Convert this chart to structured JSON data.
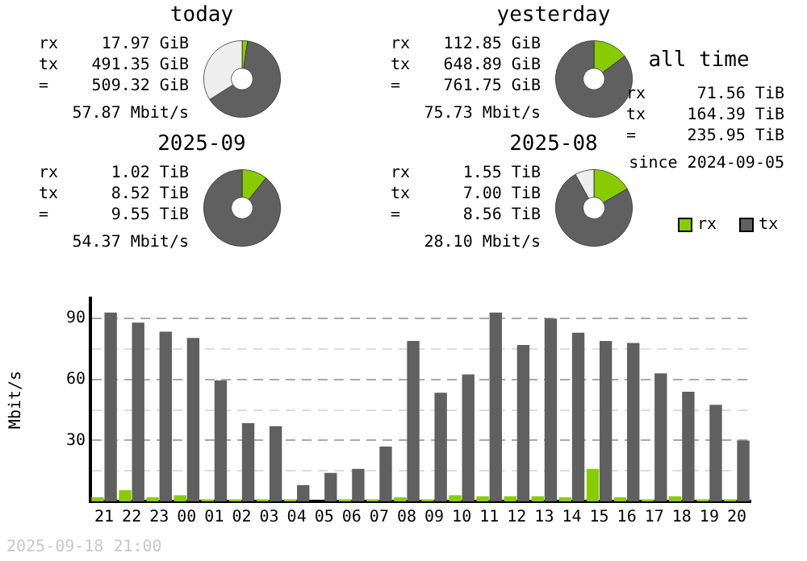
{
  "chart_data": [
    {
      "type": "donut",
      "title": "today",
      "categories": [
        null,
        null,
        null
      ],
      "values": [
        2.3,
        63.7,
        34
      ],
      "colors": [
        "#88cc00",
        "#606060",
        "#eeeeee"
      ],
      "annotations": [
        "rx",
        "17.97 GiB",
        "tx",
        "491.35 GiB",
        "=",
        "509.32 GiB",
        "57.87 Mbit/s"
      ]
    },
    {
      "type": "donut",
      "title": "yesterday",
      "categories": [
        null,
        null,
        null
      ],
      "values": [
        14.8,
        85.2,
        0
      ],
      "colors": [
        "#88cc00",
        "#606060",
        "#eeeeee"
      ],
      "annotations": [
        "rx",
        "112.85 GiB",
        "tx",
        "648.89 GiB",
        "=",
        "761.75 GiB",
        "75.73 Mbit/s"
      ]
    },
    {
      "type": "other",
      "title": "all time",
      "annotations": [
        "rx",
        "71.56 TiB",
        "tx",
        "164.39 TiB",
        "=",
        "235.95 TiB",
        "since 2024-09-05"
      ]
    },
    {
      "type": "donut",
      "title": "2025-09",
      "categories": [
        null,
        null,
        null
      ],
      "values": [
        10.7,
        89.3,
        0
      ],
      "colors": [
        "#88cc00",
        "#606060",
        "#eeeeee"
      ],
      "annotations": [
        "rx",
        "1.02 TiB",
        "tx",
        "8.52 TiB",
        "=",
        "9.55 TiB",
        "54.37 Mbit/s"
      ]
    },
    {
      "type": "donut",
      "title": "2025-08",
      "categories": [
        null,
        null,
        null
      ],
      "values": [
        16.7,
        75.3,
        8
      ],
      "colors": [
        "#88cc00",
        "#606060",
        "#eeeeee"
      ],
      "annotations": [
        "rx",
        "1.55 TiB",
        "tx",
        "7.00 TiB",
        "=",
        "8.56 TiB",
        "28.10 Mbit/s"
      ]
    },
    {
      "type": "bar",
      "ylabel": "Mbit/s",
      "legend": "top right",
      "grid": "y",
      "categories": [
        "21",
        "22",
        "23",
        "00",
        "01",
        "02",
        "03",
        "04",
        "05",
        "06",
        "07",
        "08",
        "09",
        "10",
        "11",
        "12",
        "13",
        "14",
        "15",
        "16",
        "17",
        "18",
        "19",
        "20"
      ],
      "series": [
        {
          "name": "rx",
          "color": "#88cc00",
          "values": [
            2,
            5.5,
            2,
            3,
            1,
            1,
            1,
            1,
            0,
            1,
            1,
            2,
            1,
            3,
            2.5,
            2.5,
            2.5,
            2,
            16,
            2,
            1,
            2.5,
            1,
            1
          ]
        },
        {
          "name": "tx",
          "color": "#606060",
          "values": [
            93,
            88,
            83.5,
            80.5,
            59.5,
            38.5,
            37,
            8,
            14,
            16,
            27,
            79,
            53.5,
            62.5,
            93,
            77,
            90,
            83,
            79,
            78,
            63,
            54,
            47.5,
            30
          ]
        }
      ],
      "ylim": [
        0,
        100
      ],
      "yticks": [
        {
          "value": 15,
          "label": null
        },
        30,
        {
          "value": 45,
          "label": null
        },
        60,
        {
          "value": 75,
          "label": null
        },
        90
      ],
      "annotations": [
        "2025-09-18 21:00"
      ]
    }
  ]
}
